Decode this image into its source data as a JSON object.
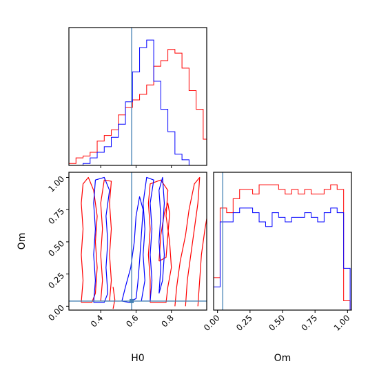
{
  "chart_data": {
    "type": "corner",
    "parameters": [
      "H0",
      "Om"
    ],
    "truths": {
      "H0": 0.575,
      "Om": 0.04
    },
    "truth_color": "#4682b4",
    "series_colors": [
      "#ff0000",
      "#0000ff"
    ],
    "panels": [
      {
        "id": "h0-marginal",
        "type": "histogram",
        "x_param": "H0",
        "xlim": [
          0.22,
          1.0
        ],
        "xticks": [
          0.4,
          0.6,
          0.8
        ],
        "show_tick_labels": false,
        "bin_edges": [
          0.22,
          0.26,
          0.3,
          0.34,
          0.38,
          0.42,
          0.46,
          0.5,
          0.54,
          0.58,
          0.62,
          0.66,
          0.7,
          0.74,
          0.78,
          0.82,
          0.86,
          0.9,
          0.94,
          0.98,
          1.02
        ],
        "series": [
          {
            "color": "#ff0000",
            "counts": [
              0.5,
              2,
              2.5,
              3.5,
              6.5,
              8,
              9.5,
              13.5,
              15.5,
              17.5,
              19,
              21.5,
              26.5,
              28,
              31,
              30,
              26,
              20,
              15,
              7
            ]
          },
          {
            "color": "#0000ff",
            "counts": [
              0,
              0,
              0.5,
              2,
              3.5,
              5,
              7.5,
              11,
              17,
              25,
              31.5,
              33.5,
              22.5,
              15,
              9,
              3,
              1.5,
              0,
              0,
              0
            ]
          }
        ]
      },
      {
        "id": "h0-om-contour",
        "type": "contour",
        "x_param": "H0",
        "y_param": "Om",
        "xlim": [
          0.22,
          1.0
        ],
        "ylim": [
          -0.03,
          1.04
        ],
        "xticks": [
          0.4,
          0.6,
          0.8
        ],
        "yticks": [
          0.0,
          0.25,
          0.5,
          0.75,
          1.0
        ],
        "xtick_labels": [
          "0.4",
          "0.6",
          "0.8"
        ],
        "ytick_labels": [
          "0.00",
          "0.25",
          "0.50",
          "0.75",
          "1.00"
        ],
        "xlabel": "H0",
        "ylabel": "Om",
        "contours": [
          {
            "color": "#ff0000",
            "points": [
              [
                0.29,
                0.03
              ],
              [
                0.3,
                0.2
              ],
              [
                0.29,
                0.4
              ],
              [
                0.3,
                0.6
              ],
              [
                0.29,
                0.8
              ],
              [
                0.3,
                0.95
              ],
              [
                0.33,
                1.0
              ],
              [
                0.36,
                0.9
              ],
              [
                0.38,
                0.7
              ],
              [
                0.37,
                0.5
              ],
              [
                0.38,
                0.3
              ],
              [
                0.37,
                0.1
              ],
              [
                0.35,
                0.03
              ],
              [
                0.29,
                0.03
              ]
            ]
          },
          {
            "color": "#ff0000",
            "points": [
              [
                0.4,
                0.04
              ],
              [
                0.41,
                0.2
              ],
              [
                0.4,
                0.4
              ],
              [
                0.41,
                0.6
              ],
              [
                0.4,
                0.8
              ],
              [
                0.42,
                0.98
              ],
              [
                0.46,
                0.97
              ],
              [
                0.45,
                0.8
              ],
              [
                0.46,
                0.6
              ],
              [
                0.45,
                0.4
              ],
              [
                0.46,
                0.2
              ],
              [
                0.45,
                0.04
              ],
              [
                0.4,
                0.04
              ]
            ]
          },
          {
            "color": "#ff0000",
            "points": [
              [
                0.68,
                0.03
              ],
              [
                0.68,
                0.2
              ],
              [
                0.67,
                0.4
              ],
              [
                0.68,
                0.6
              ],
              [
                0.67,
                0.8
              ],
              [
                0.68,
                0.95
              ],
              [
                0.74,
                0.98
              ],
              [
                0.78,
                0.9
              ],
              [
                0.77,
                0.7
              ],
              [
                0.79,
                0.5
              ],
              [
                0.8,
                0.3
              ],
              [
                0.78,
                0.15
              ],
              [
                0.77,
                0.03
              ],
              [
                0.68,
                0.03
              ]
            ]
          },
          {
            "color": "#ff0000",
            "points": [
              [
                0.73,
                0.35
              ],
              [
                0.74,
                0.55
              ],
              [
                0.76,
                0.72
              ],
              [
                0.78,
                0.8
              ],
              [
                0.79,
                0.72
              ],
              [
                0.78,
                0.55
              ],
              [
                0.77,
                0.38
              ],
              [
                0.73,
                0.35
              ]
            ]
          },
          {
            "color": "#ff0000",
            "points": [
              [
                0.82,
                0.0
              ],
              [
                0.83,
                0.15
              ],
              [
                0.85,
                0.35
              ],
              [
                0.88,
                0.55
              ],
              [
                0.9,
                0.75
              ],
              [
                0.93,
                0.95
              ],
              [
                0.96,
                1.0
              ],
              [
                0.95,
                0.8
              ],
              [
                0.93,
                0.6
              ],
              [
                0.91,
                0.4
              ],
              [
                0.89,
                0.2
              ],
              [
                0.88,
                0.0
              ]
            ]
          },
          {
            "color": "#ff0000",
            "points": [
              [
                0.95,
                0.0
              ],
              [
                0.96,
                0.2
              ],
              [
                0.97,
                0.4
              ],
              [
                0.99,
                0.6
              ],
              [
                1.0,
                0.68
              ]
            ]
          },
          {
            "color": "#ff0000",
            "points": [
              [
                0.47,
                -0.02
              ],
              [
                0.48,
                0.05
              ],
              [
                0.47,
                0.15
              ]
            ]
          },
          {
            "color": "#0000ff",
            "points": [
              [
                0.36,
                0.03
              ],
              [
                0.37,
                0.2
              ],
              [
                0.36,
                0.4
              ],
              [
                0.37,
                0.6
              ],
              [
                0.36,
                0.8
              ],
              [
                0.37,
                0.98
              ],
              [
                0.42,
                1.0
              ],
              [
                0.45,
                0.9
              ],
              [
                0.43,
                0.7
              ],
              [
                0.44,
                0.5
              ],
              [
                0.43,
                0.3
              ],
              [
                0.44,
                0.1
              ],
              [
                0.42,
                0.03
              ],
              [
                0.36,
                0.03
              ]
            ]
          },
          {
            "color": "#0000ff",
            "points": [
              [
                0.52,
                0.04
              ],
              [
                0.54,
                0.15
              ],
              [
                0.57,
                0.3
              ],
              [
                0.59,
                0.5
              ],
              [
                0.6,
                0.7
              ],
              [
                0.62,
                0.85
              ],
              [
                0.64,
                0.75
              ],
              [
                0.63,
                0.55
              ],
              [
                0.62,
                0.35
              ],
              [
                0.61,
                0.18
              ],
              [
                0.6,
                0.06
              ],
              [
                0.56,
                0.03
              ],
              [
                0.52,
                0.04
              ]
            ]
          },
          {
            "color": "#0000ff",
            "points": [
              [
                0.63,
                0.04
              ],
              [
                0.65,
                0.2
              ],
              [
                0.64,
                0.4
              ],
              [
                0.65,
                0.6
              ],
              [
                0.64,
                0.8
              ],
              [
                0.66,
                1.0
              ],
              [
                0.7,
                0.98
              ],
              [
                0.68,
                0.8
              ],
              [
                0.69,
                0.6
              ],
              [
                0.68,
                0.4
              ],
              [
                0.69,
                0.2
              ],
              [
                0.68,
                0.04
              ],
              [
                0.63,
                0.04
              ]
            ]
          },
          {
            "color": "#0000ff",
            "points": [
              [
                0.73,
                0.1
              ],
              [
                0.74,
                0.3
              ],
              [
                0.73,
                0.5
              ],
              [
                0.74,
                0.7
              ],
              [
                0.73,
                0.9
              ],
              [
                0.75,
                1.0
              ],
              [
                0.76,
                0.8
              ],
              [
                0.75,
                0.6
              ],
              [
                0.76,
                0.4
              ],
              [
                0.75,
                0.2
              ],
              [
                0.73,
                0.1
              ]
            ]
          }
        ]
      },
      {
        "id": "om-marginal",
        "type": "histogram",
        "x_param": "Om",
        "xlim": [
          -0.03,
          1.03
        ],
        "xticks": [
          0.0,
          0.25,
          0.5,
          0.75,
          1.0
        ],
        "xtick_labels": [
          "0.00",
          "0.25",
          "0.50",
          "0.75",
          "1.00"
        ],
        "xlabel": "Om",
        "bin_edges": [
          -0.03,
          0.02,
          0.07,
          0.12,
          0.17,
          0.22,
          0.27,
          0.32,
          0.37,
          0.42,
          0.47,
          0.52,
          0.57,
          0.62,
          0.67,
          0.72,
          0.77,
          0.82,
          0.87,
          0.92,
          0.97,
          1.02
        ],
        "series": [
          {
            "color": "#ff0000",
            "counts": [
              7,
              22,
              21,
              24,
              26,
              26,
              25,
              27,
              27,
              27,
              26,
              25,
              26,
              25,
              26,
              25,
              25,
              26,
              27,
              26,
              2
            ]
          },
          {
            "color": "#0000ff",
            "counts": [
              5,
              19,
              19,
              21,
              22,
              22,
              21,
              19,
              18,
              21,
              20,
              19,
              20,
              20,
              21,
              20,
              19,
              21,
              22,
              21,
              9
            ]
          }
        ]
      }
    ]
  }
}
